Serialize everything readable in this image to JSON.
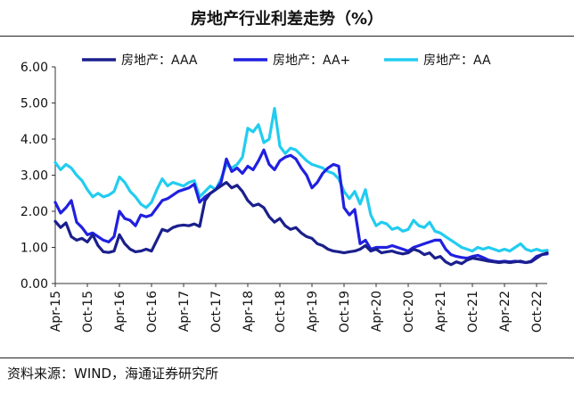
{
  "chart_data": {
    "type": "line",
    "title": "房地产行业利差走势（%）",
    "xlabel": "",
    "ylabel": "",
    "ylim": [
      0,
      6
    ],
    "yticks": [
      "0.00",
      "1.00",
      "2.00",
      "3.00",
      "4.00",
      "5.00",
      "6.00"
    ],
    "x_ticks": [
      "Apr-15",
      "Oct-15",
      "Apr-16",
      "Oct-16",
      "Apr-17",
      "Oct-17",
      "Apr-18",
      "Oct-18",
      "Apr-19",
      "Oct-19",
      "Apr-20",
      "Oct-20",
      "Apr-21",
      "Oct-21",
      "Apr-22",
      "Oct-22"
    ],
    "grid": false,
    "legend_position": "top",
    "source": "资料来源：WIND，海通证券研究所",
    "series": [
      {
        "name": "房地产：AAA",
        "color": "#1a1f8c",
        "points": [
          [
            "2015-04-01",
            1.72
          ],
          [
            "2015-05-01",
            1.55
          ],
          [
            "2015-06-01",
            1.68
          ],
          [
            "2015-07-01",
            1.3
          ],
          [
            "2015-08-01",
            1.2
          ],
          [
            "2015-09-01",
            1.25
          ],
          [
            "2015-10-01",
            1.15
          ],
          [
            "2015-11-01",
            1.35
          ],
          [
            "2015-12-01",
            1.05
          ],
          [
            "2016-01-01",
            0.88
          ],
          [
            "2016-02-01",
            0.86
          ],
          [
            "2016-03-01",
            0.9
          ],
          [
            "2016-04-01",
            1.35
          ],
          [
            "2016-05-01",
            1.1
          ],
          [
            "2016-06-01",
            0.95
          ],
          [
            "2016-07-01",
            0.88
          ],
          [
            "2016-08-01",
            0.9
          ],
          [
            "2016-09-01",
            0.95
          ],
          [
            "2016-10-01",
            0.9
          ],
          [
            "2016-11-01",
            1.2
          ],
          [
            "2016-12-01",
            1.5
          ],
          [
            "2017-01-01",
            1.45
          ],
          [
            "2017-02-01",
            1.55
          ],
          [
            "2017-03-01",
            1.6
          ],
          [
            "2017-04-01",
            1.62
          ],
          [
            "2017-05-01",
            1.6
          ],
          [
            "2017-06-01",
            1.65
          ],
          [
            "2017-07-01",
            1.58
          ],
          [
            "2017-08-01",
            2.3
          ],
          [
            "2017-09-01",
            2.5
          ],
          [
            "2017-10-01",
            2.6
          ],
          [
            "2017-11-01",
            2.7
          ],
          [
            "2017-12-01",
            2.8
          ],
          [
            "2018-01-01",
            2.65
          ],
          [
            "2018-02-01",
            2.72
          ],
          [
            "2018-03-01",
            2.55
          ],
          [
            "2018-04-01",
            2.3
          ],
          [
            "2018-05-01",
            2.15
          ],
          [
            "2018-06-01",
            2.2
          ],
          [
            "2018-07-01",
            2.1
          ],
          [
            "2018-08-01",
            1.85
          ],
          [
            "2018-09-01",
            1.7
          ],
          [
            "2018-10-01",
            1.8
          ],
          [
            "2018-11-01",
            1.6
          ],
          [
            "2018-12-01",
            1.5
          ],
          [
            "2019-01-01",
            1.55
          ],
          [
            "2019-02-01",
            1.4
          ],
          [
            "2019-03-01",
            1.3
          ],
          [
            "2019-04-01",
            1.25
          ],
          [
            "2019-05-01",
            1.1
          ],
          [
            "2019-06-01",
            1.05
          ],
          [
            "2019-07-01",
            0.95
          ],
          [
            "2019-08-01",
            0.9
          ],
          [
            "2019-09-01",
            0.88
          ],
          [
            "2019-10-01",
            0.85
          ],
          [
            "2019-11-01",
            0.88
          ],
          [
            "2019-12-01",
            0.9
          ],
          [
            "2020-01-01",
            0.95
          ],
          [
            "2020-02-01",
            1.05
          ],
          [
            "2020-03-01",
            0.9
          ],
          [
            "2020-04-01",
            0.95
          ],
          [
            "2020-05-01",
            0.85
          ],
          [
            "2020-06-01",
            0.88
          ],
          [
            "2020-07-01",
            0.9
          ],
          [
            "2020-08-01",
            0.85
          ],
          [
            "2020-09-01",
            0.82
          ],
          [
            "2020-10-01",
            0.85
          ],
          [
            "2020-11-01",
            0.95
          ],
          [
            "2020-12-01",
            0.9
          ],
          [
            "2021-01-01",
            0.8
          ],
          [
            "2021-02-01",
            0.85
          ],
          [
            "2021-03-01",
            0.7
          ],
          [
            "2021-04-01",
            0.75
          ],
          [
            "2021-05-01",
            0.6
          ],
          [
            "2021-06-01",
            0.52
          ],
          [
            "2021-07-01",
            0.6
          ],
          [
            "2021-08-01",
            0.55
          ],
          [
            "2021-09-01",
            0.65
          ],
          [
            "2021-10-01",
            0.7
          ],
          [
            "2021-11-01",
            0.68
          ],
          [
            "2021-12-01",
            0.65
          ],
          [
            "2022-01-01",
            0.62
          ],
          [
            "2022-02-01",
            0.6
          ],
          [
            "2022-03-01",
            0.58
          ],
          [
            "2022-04-01",
            0.6
          ],
          [
            "2022-05-01",
            0.58
          ],
          [
            "2022-06-01",
            0.6
          ],
          [
            "2022-07-01",
            0.62
          ],
          [
            "2022-08-01",
            0.58
          ],
          [
            "2022-09-01",
            0.6
          ],
          [
            "2022-10-01",
            0.7
          ],
          [
            "2022-11-01",
            0.8
          ],
          [
            "2022-12-01",
            0.85
          ]
        ]
      },
      {
        "name": "房地产：AA+",
        "color": "#2020e0",
        "points": [
          [
            "2015-04-01",
            2.25
          ],
          [
            "2015-05-01",
            1.95
          ],
          [
            "2015-06-01",
            2.1
          ],
          [
            "2015-07-01",
            2.3
          ],
          [
            "2015-08-01",
            1.7
          ],
          [
            "2015-09-01",
            1.55
          ],
          [
            "2015-10-01",
            1.35
          ],
          [
            "2015-11-01",
            1.4
          ],
          [
            "2015-12-01",
            1.3
          ],
          [
            "2016-01-01",
            1.2
          ],
          [
            "2016-02-01",
            1.15
          ],
          [
            "2016-03-01",
            1.3
          ],
          [
            "2016-04-01",
            2.0
          ],
          [
            "2016-05-01",
            1.8
          ],
          [
            "2016-06-01",
            1.75
          ],
          [
            "2016-07-01",
            1.6
          ],
          [
            "2016-08-01",
            1.9
          ],
          [
            "2016-09-01",
            1.85
          ],
          [
            "2016-10-01",
            1.9
          ],
          [
            "2016-11-01",
            2.1
          ],
          [
            "2016-12-01",
            2.3
          ],
          [
            "2017-01-01",
            2.35
          ],
          [
            "2017-02-01",
            2.45
          ],
          [
            "2017-03-01",
            2.55
          ],
          [
            "2017-04-01",
            2.6
          ],
          [
            "2017-05-01",
            2.65
          ],
          [
            "2017-06-01",
            2.75
          ],
          [
            "2017-07-01",
            2.25
          ],
          [
            "2017-08-01",
            2.4
          ],
          [
            "2017-09-01",
            2.5
          ],
          [
            "2017-10-01",
            2.6
          ],
          [
            "2017-11-01",
            2.8
          ],
          [
            "2017-12-01",
            3.45
          ],
          [
            "2018-01-01",
            3.1
          ],
          [
            "2018-02-01",
            3.2
          ],
          [
            "2018-03-01",
            3.05
          ],
          [
            "2018-04-01",
            3.25
          ],
          [
            "2018-05-01",
            3.15
          ],
          [
            "2018-06-01",
            3.4
          ],
          [
            "2018-07-01",
            3.7
          ],
          [
            "2018-08-01",
            3.3
          ],
          [
            "2018-09-01",
            3.15
          ],
          [
            "2018-10-01",
            3.4
          ],
          [
            "2018-11-01",
            3.5
          ],
          [
            "2018-12-01",
            3.55
          ],
          [
            "2019-01-01",
            3.45
          ],
          [
            "2019-02-01",
            3.2
          ],
          [
            "2019-03-01",
            3.0
          ],
          [
            "2019-04-01",
            2.65
          ],
          [
            "2019-05-01",
            2.8
          ],
          [
            "2019-06-01",
            3.05
          ],
          [
            "2019-07-01",
            3.2
          ],
          [
            "2019-08-01",
            3.3
          ],
          [
            "2019-09-01",
            3.25
          ],
          [
            "2019-10-01",
            2.1
          ],
          [
            "2019-11-01",
            1.9
          ],
          [
            "2019-12-01",
            2.05
          ],
          [
            "2020-01-01",
            1.1
          ],
          [
            "2020-02-01",
            1.2
          ],
          [
            "2020-03-01",
            0.95
          ],
          [
            "2020-04-01",
            1.0
          ],
          [
            "2020-05-01",
            1.0
          ],
          [
            "2020-06-01",
            1.0
          ],
          [
            "2020-07-01",
            1.05
          ],
          [
            "2020-08-01",
            1.0
          ],
          [
            "2020-09-01",
            0.95
          ],
          [
            "2020-10-01",
            0.9
          ],
          [
            "2020-11-01",
            1.0
          ],
          [
            "2020-12-01",
            1.05
          ],
          [
            "2021-01-01",
            1.1
          ],
          [
            "2021-02-01",
            1.15
          ],
          [
            "2021-03-01",
            1.2
          ],
          [
            "2021-04-01",
            1.2
          ],
          [
            "2021-05-01",
            0.95
          ],
          [
            "2021-06-01",
            0.8
          ],
          [
            "2021-07-01",
            0.75
          ],
          [
            "2021-08-01",
            0.72
          ],
          [
            "2021-09-01",
            0.7
          ],
          [
            "2021-10-01",
            0.75
          ],
          [
            "2021-11-01",
            0.78
          ],
          [
            "2021-12-01",
            0.72
          ],
          [
            "2022-01-01",
            0.65
          ],
          [
            "2022-02-01",
            0.62
          ],
          [
            "2022-03-01",
            0.6
          ],
          [
            "2022-04-01",
            0.62
          ],
          [
            "2022-05-01",
            0.6
          ],
          [
            "2022-06-01",
            0.62
          ],
          [
            "2022-07-01",
            0.6
          ],
          [
            "2022-08-01",
            0.58
          ],
          [
            "2022-09-01",
            0.62
          ],
          [
            "2022-10-01",
            0.75
          ],
          [
            "2022-11-01",
            0.8
          ],
          [
            "2022-12-01",
            0.82
          ]
        ]
      },
      {
        "name": "房地产：AA",
        "color": "#22ccf0",
        "points": [
          [
            "2015-04-01",
            3.35
          ],
          [
            "2015-05-01",
            3.15
          ],
          [
            "2015-06-01",
            3.3
          ],
          [
            "2015-07-01",
            3.2
          ],
          [
            "2015-08-01",
            3.0
          ],
          [
            "2015-09-01",
            2.85
          ],
          [
            "2015-10-01",
            2.6
          ],
          [
            "2015-11-01",
            2.4
          ],
          [
            "2015-12-01",
            2.5
          ],
          [
            "2016-01-01",
            2.4
          ],
          [
            "2016-02-01",
            2.45
          ],
          [
            "2016-03-01",
            2.55
          ],
          [
            "2016-04-01",
            2.95
          ],
          [
            "2016-05-01",
            2.8
          ],
          [
            "2016-06-01",
            2.55
          ],
          [
            "2016-07-01",
            2.4
          ],
          [
            "2016-08-01",
            2.2
          ],
          [
            "2016-09-01",
            2.1
          ],
          [
            "2016-10-01",
            2.25
          ],
          [
            "2016-11-01",
            2.6
          ],
          [
            "2016-12-01",
            2.9
          ],
          [
            "2017-01-01",
            2.7
          ],
          [
            "2017-02-01",
            2.8
          ],
          [
            "2017-03-01",
            2.75
          ],
          [
            "2017-04-01",
            2.7
          ],
          [
            "2017-05-01",
            2.8
          ],
          [
            "2017-06-01",
            2.85
          ],
          [
            "2017-07-01",
            2.4
          ],
          [
            "2017-08-01",
            2.55
          ],
          [
            "2017-09-01",
            2.7
          ],
          [
            "2017-10-01",
            2.6
          ],
          [
            "2017-11-01",
            2.9
          ],
          [
            "2017-12-01",
            3.3
          ],
          [
            "2018-01-01",
            3.2
          ],
          [
            "2018-02-01",
            3.3
          ],
          [
            "2018-03-01",
            3.5
          ],
          [
            "2018-04-01",
            4.3
          ],
          [
            "2018-05-01",
            4.2
          ],
          [
            "2018-06-01",
            4.4
          ],
          [
            "2018-07-01",
            3.9
          ],
          [
            "2018-08-01",
            4.0
          ],
          [
            "2018-09-01",
            4.85
          ],
          [
            "2018-10-01",
            3.8
          ],
          [
            "2018-11-01",
            3.6
          ],
          [
            "2018-12-01",
            3.75
          ],
          [
            "2019-01-01",
            3.7
          ],
          [
            "2019-02-01",
            3.55
          ],
          [
            "2019-03-01",
            3.4
          ],
          [
            "2019-04-01",
            3.3
          ],
          [
            "2019-05-01",
            3.25
          ],
          [
            "2019-06-01",
            3.2
          ],
          [
            "2019-07-01",
            3.1
          ],
          [
            "2019-08-01",
            3.05
          ],
          [
            "2019-09-01",
            2.9
          ],
          [
            "2019-10-01",
            2.55
          ],
          [
            "2019-11-01",
            2.35
          ],
          [
            "2019-12-01",
            2.55
          ],
          [
            "2020-01-01",
            2.2
          ],
          [
            "2020-02-01",
            2.6
          ],
          [
            "2020-03-01",
            1.9
          ],
          [
            "2020-04-01",
            1.6
          ],
          [
            "2020-05-01",
            1.7
          ],
          [
            "2020-06-01",
            1.65
          ],
          [
            "2020-07-01",
            1.5
          ],
          [
            "2020-08-01",
            1.55
          ],
          [
            "2020-09-01",
            1.45
          ],
          [
            "2020-10-01",
            1.5
          ],
          [
            "2020-11-01",
            1.75
          ],
          [
            "2020-12-01",
            1.6
          ],
          [
            "2021-01-01",
            1.55
          ],
          [
            "2021-02-01",
            1.7
          ],
          [
            "2021-03-01",
            1.45
          ],
          [
            "2021-04-01",
            1.4
          ],
          [
            "2021-05-01",
            1.3
          ],
          [
            "2021-06-01",
            1.2
          ],
          [
            "2021-07-01",
            1.1
          ],
          [
            "2021-08-01",
            1.0
          ],
          [
            "2021-09-01",
            0.95
          ],
          [
            "2021-10-01",
            0.9
          ],
          [
            "2021-11-01",
            1.0
          ],
          [
            "2021-12-01",
            0.95
          ],
          [
            "2022-01-01",
            1.0
          ],
          [
            "2022-02-01",
            0.95
          ],
          [
            "2022-03-01",
            0.9
          ],
          [
            "2022-04-01",
            0.95
          ],
          [
            "2022-05-01",
            0.9
          ],
          [
            "2022-06-01",
            1.0
          ],
          [
            "2022-07-01",
            1.1
          ],
          [
            "2022-08-01",
            0.95
          ],
          [
            "2022-09-01",
            0.9
          ],
          [
            "2022-10-01",
            0.95
          ],
          [
            "2022-11-01",
            0.9
          ],
          [
            "2022-12-01",
            0.92
          ]
        ]
      }
    ]
  }
}
